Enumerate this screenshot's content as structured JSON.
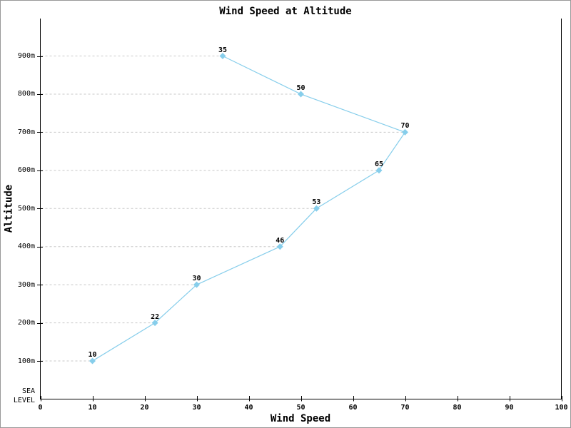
{
  "window": {
    "background": "#ffffff",
    "border_color": "#999999"
  },
  "chart_data": {
    "type": "line",
    "title": "Wind Speed at Altitude",
    "xlabel": "Wind Speed",
    "ylabel": "Altitude",
    "xlim": [
      0,
      100
    ],
    "x_ticks": [
      0,
      10,
      20,
      30,
      40,
      50,
      60,
      70,
      80,
      90,
      100
    ],
    "ylim": [
      0,
      1000
    ],
    "y_ticks": [
      {
        "value": 100,
        "label": "100m"
      },
      {
        "value": 200,
        "label": "200m"
      },
      {
        "value": 300,
        "label": "300m"
      },
      {
        "value": 400,
        "label": "400m"
      },
      {
        "value": 500,
        "label": "500m"
      },
      {
        "value": 600,
        "label": "600m"
      },
      {
        "value": 700,
        "label": "700m"
      },
      {
        "value": 800,
        "label": "800m"
      },
      {
        "value": 900,
        "label": "900m"
      }
    ],
    "y_zero_label_lines": [
      "SEA",
      "LEVEL"
    ],
    "legend": "none",
    "grid": "dashed leader line from y-axis to each data point",
    "series": [
      {
        "name": "wind speed",
        "color": "#87CEEB",
        "marker": "diamond",
        "points": [
          {
            "x": 10,
            "altitude_m": 100,
            "label": "10"
          },
          {
            "x": 22,
            "altitude_m": 200,
            "label": "22"
          },
          {
            "x": 30,
            "altitude_m": 300,
            "label": "30"
          },
          {
            "x": 46,
            "altitude_m": 400,
            "label": "46"
          },
          {
            "x": 53,
            "altitude_m": 500,
            "label": "53"
          },
          {
            "x": 65,
            "altitude_m": 600,
            "label": "65"
          },
          {
            "x": 70,
            "altitude_m": 700,
            "label": "70"
          },
          {
            "x": 50,
            "altitude_m": 800,
            "label": "50"
          },
          {
            "x": 35,
            "altitude_m": 900,
            "label": "35"
          }
        ]
      }
    ],
    "colors": {
      "axis": "#000000",
      "gridline": "#c8c8c8",
      "text": "#000000"
    }
  }
}
